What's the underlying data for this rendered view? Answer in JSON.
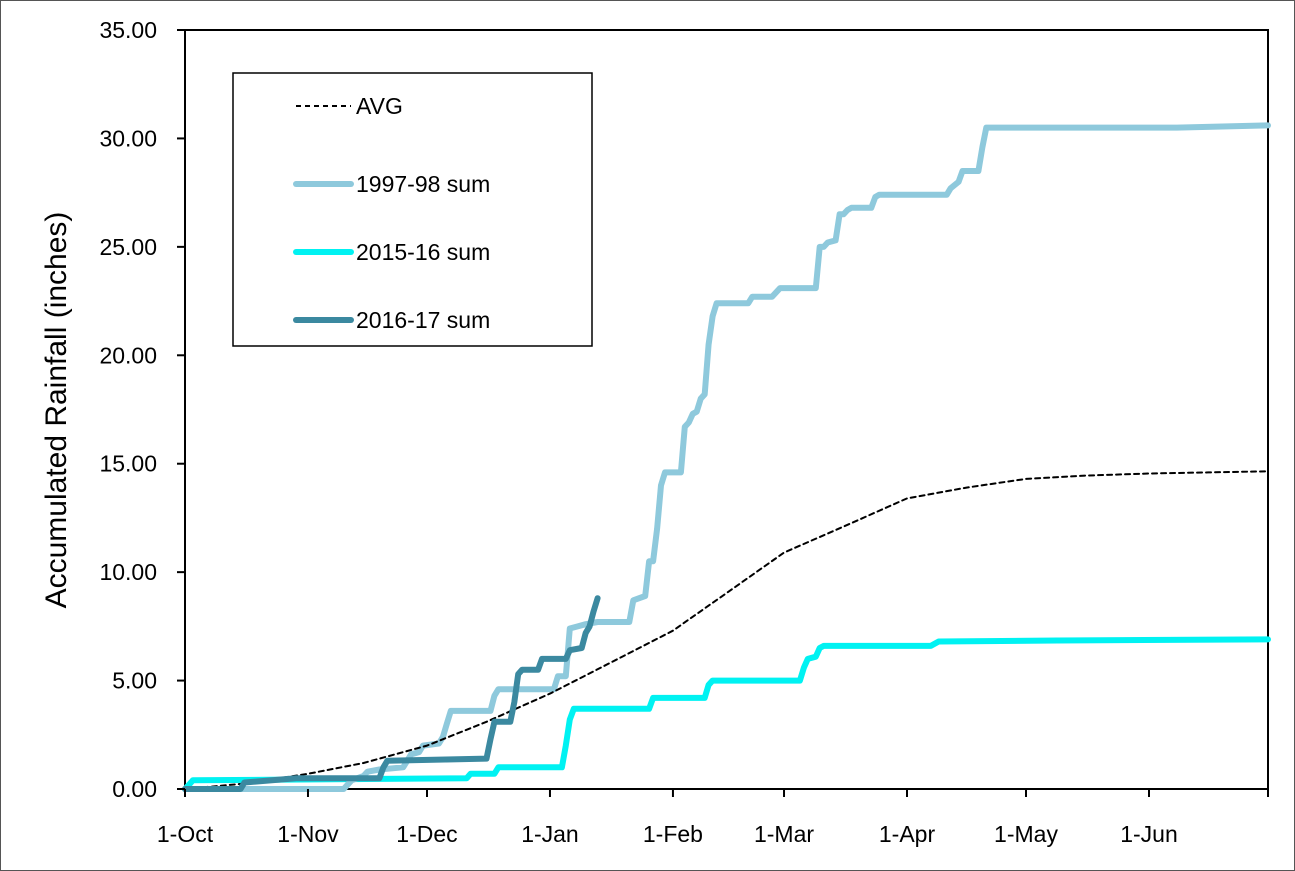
{
  "chart_data": {
    "type": "line",
    "title": "",
    "xlabel": "",
    "ylabel": "Accumulated Rainfall (inches)",
    "ylim": [
      0,
      35
    ],
    "yticks": [
      "0.00",
      "5.00",
      "10.00",
      "15.00",
      "20.00",
      "25.00",
      "30.00",
      "35.00"
    ],
    "xlim": [
      0,
      273
    ],
    "xticks": [
      {
        "label": "1-Oct",
        "day": 0
      },
      {
        "label": "1-Nov",
        "day": 31
      },
      {
        "label": "1-Dec",
        "day": 61
      },
      {
        "label": "1-Jan",
        "day": 92
      },
      {
        "label": "1-Feb",
        "day": 123
      },
      {
        "label": "1-Mar",
        "day": 151
      },
      {
        "label": "1-Apr",
        "day": 182
      },
      {
        "label": "1-May",
        "day": 212
      },
      {
        "label": "1-Jun",
        "day": 243
      }
    ],
    "grid": false,
    "legend": "top-left",
    "series": [
      {
        "name": "AVG",
        "color": "#000000",
        "dash": true,
        "points": [
          [
            0,
            0
          ],
          [
            15,
            0.25
          ],
          [
            31,
            0.7
          ],
          [
            45,
            1.2
          ],
          [
            61,
            2.0
          ],
          [
            76,
            3.1
          ],
          [
            92,
            4.4
          ],
          [
            107,
            5.8
          ],
          [
            123,
            7.3
          ],
          [
            137,
            9.1
          ],
          [
            151,
            10.9
          ],
          [
            166,
            12.1
          ],
          [
            182,
            13.4
          ],
          [
            197,
            13.9
          ],
          [
            212,
            14.3
          ],
          [
            227,
            14.45
          ],
          [
            243,
            14.55
          ],
          [
            258,
            14.6
          ],
          [
            273,
            14.65
          ]
        ]
      },
      {
        "name": "1997-98 sum",
        "color": "#8ec9dc",
        "points": [
          [
            0,
            0
          ],
          [
            40,
            0
          ],
          [
            41,
            0.2
          ],
          [
            42,
            0.4
          ],
          [
            45,
            0.6
          ],
          [
            46,
            0.8
          ],
          [
            49,
            0.9
          ],
          [
            55,
            1.0
          ],
          [
            56,
            1.3
          ],
          [
            57,
            1.6
          ],
          [
            59,
            1.7
          ],
          [
            60,
            2.0
          ],
          [
            64,
            2.1
          ],
          [
            65,
            2.4
          ],
          [
            66,
            3.0
          ],
          [
            67,
            3.6
          ],
          [
            77,
            3.6
          ],
          [
            78,
            4.3
          ],
          [
            79,
            4.6
          ],
          [
            93,
            4.6
          ],
          [
            94,
            5.2
          ],
          [
            96,
            5.2
          ],
          [
            97,
            7.4
          ],
          [
            99,
            7.5
          ],
          [
            101,
            7.6
          ],
          [
            104,
            7.7
          ],
          [
            112,
            7.7
          ],
          [
            113,
            8.7
          ],
          [
            116,
            8.9
          ],
          [
            117,
            10.5
          ],
          [
            118,
            10.5
          ],
          [
            119,
            12.0
          ],
          [
            120,
            14.0
          ],
          [
            121,
            14.6
          ],
          [
            125,
            14.6
          ],
          [
            126,
            16.7
          ],
          [
            127,
            16.9
          ],
          [
            128,
            17.3
          ],
          [
            129,
            17.4
          ],
          [
            130,
            18.0
          ],
          [
            131,
            18.2
          ],
          [
            132,
            20.5
          ],
          [
            133,
            21.8
          ],
          [
            134,
            22.4
          ],
          [
            142,
            22.4
          ],
          [
            143,
            22.7
          ],
          [
            148,
            22.7
          ],
          [
            150,
            23.1
          ],
          [
            159,
            23.1
          ],
          [
            160,
            25.0
          ],
          [
            161,
            25.0
          ],
          [
            162,
            25.2
          ],
          [
            164,
            25.3
          ],
          [
            165,
            26.5
          ],
          [
            166,
            26.5
          ],
          [
            167,
            26.7
          ],
          [
            168,
            26.8
          ],
          [
            173,
            26.8
          ],
          [
            174,
            27.3
          ],
          [
            175,
            27.4
          ],
          [
            192,
            27.4
          ],
          [
            193,
            27.7
          ],
          [
            195,
            28.0
          ],
          [
            196,
            28.5
          ],
          [
            200,
            28.5
          ],
          [
            201,
            29.6
          ],
          [
            202,
            30.5
          ],
          [
            250,
            30.5
          ],
          [
            273,
            30.6
          ]
        ]
      },
      {
        "name": "2015-16 sum",
        "color": "#00f2f2",
        "points": [
          [
            0,
            0
          ],
          [
            1,
            0.2
          ],
          [
            2,
            0.4
          ],
          [
            71,
            0.5
          ],
          [
            72,
            0.7
          ],
          [
            78,
            0.7
          ],
          [
            79,
            1.0
          ],
          [
            95,
            1.0
          ],
          [
            96,
            2.0
          ],
          [
            97,
            3.2
          ],
          [
            98,
            3.7
          ],
          [
            117,
            3.7
          ],
          [
            118,
            4.2
          ],
          [
            131,
            4.2
          ],
          [
            132,
            4.8
          ],
          [
            133,
            5.0
          ],
          [
            155,
            5.0
          ],
          [
            156,
            5.6
          ],
          [
            157,
            6.0
          ],
          [
            159,
            6.1
          ],
          [
            160,
            6.5
          ],
          [
            161,
            6.6
          ],
          [
            188,
            6.6
          ],
          [
            190,
            6.8
          ],
          [
            220,
            6.85
          ],
          [
            273,
            6.9
          ]
        ]
      },
      {
        "name": "2016-17 sum",
        "color": "#3b89a0",
        "points": [
          [
            0,
            0
          ],
          [
            14,
            0
          ],
          [
            15,
            0.3
          ],
          [
            28,
            0.5
          ],
          [
            49,
            0.5
          ],
          [
            50,
            1.0
          ],
          [
            51,
            1.3
          ],
          [
            76,
            1.4
          ],
          [
            77,
            2.3
          ],
          [
            78,
            3.1
          ],
          [
            82,
            3.1
          ],
          [
            83,
            4.0
          ],
          [
            84,
            5.3
          ],
          [
            85,
            5.5
          ],
          [
            89,
            5.5
          ],
          [
            90,
            6.0
          ],
          [
            96,
            6.0
          ],
          [
            97,
            6.4
          ],
          [
            100,
            6.5
          ],
          [
            101,
            7.2
          ],
          [
            102,
            7.5
          ],
          [
            103,
            8.2
          ],
          [
            104,
            8.8
          ]
        ]
      }
    ]
  }
}
